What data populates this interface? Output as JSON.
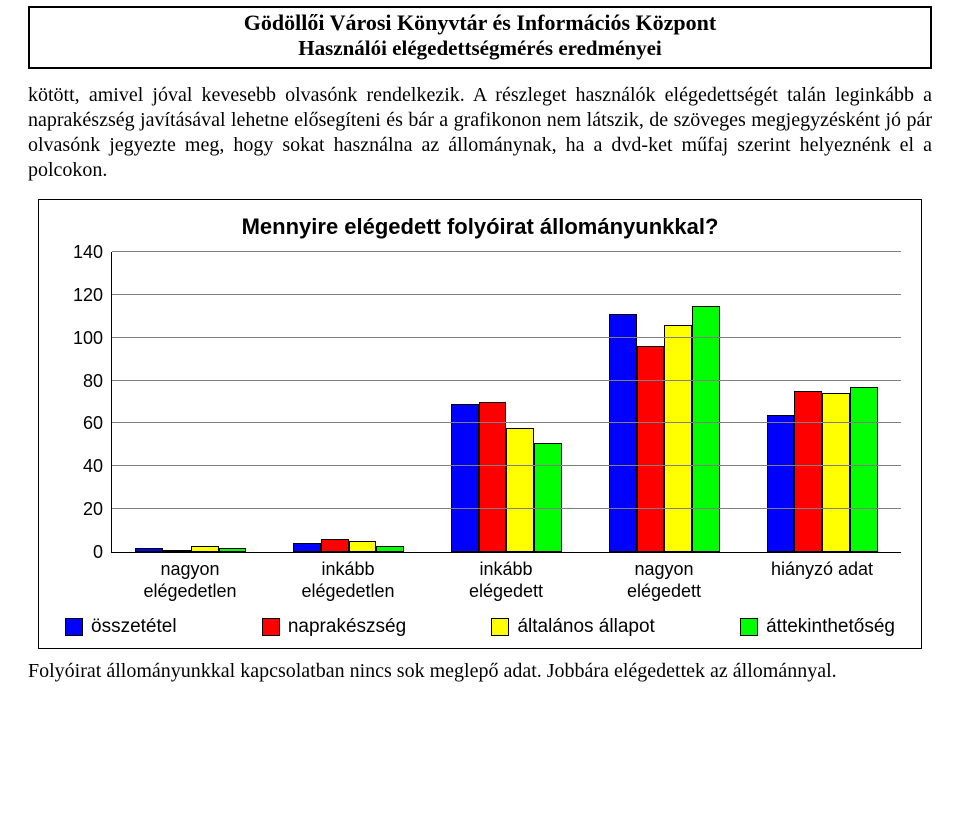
{
  "header": {
    "line1": "Gödöllői Városi Könyvtár és Információs Központ",
    "line2": "Használói elégedettségmérés eredményei"
  },
  "intro_paragraph": "kötött, amivel jóval kevesebb olvasónk rendelkezik. A részleget használók elégedettségét talán leginkább a naprakészség javításával lehetne elősegíteni és bár a grafikonon nem látszik, de szöveges megjegyzésként jó pár olvasónk jegyezte meg, hogy sokat használna az állománynak, ha a dvd-ket műfaj szerint helyeznénk el a polcokon.",
  "chart": {
    "type": "bar",
    "title": "Mennyire elégedett folyóirat állományunkkal?",
    "title_fontsize": 22,
    "background_color": "#ffffff",
    "grid_color": "#808080",
    "y": {
      "min": 0,
      "max": 140,
      "step": 20,
      "ticks": [
        140,
        120,
        100,
        80,
        60,
        40,
        20,
        0
      ],
      "label_fontsize": 18
    },
    "categories": [
      {
        "label_line1": "nagyon",
        "label_line2": "elégedetlen"
      },
      {
        "label_line1": "inkább",
        "label_line2": "elégedetlen"
      },
      {
        "label_line1": "inkább",
        "label_line2": "elégedett"
      },
      {
        "label_line1": "nagyon",
        "label_line2": "elégedett"
      },
      {
        "label_line1": "hiányzó adat",
        "label_line2": ""
      }
    ],
    "series": [
      {
        "name": "összetétel",
        "color": "#0000ff"
      },
      {
        "name": "naprakészség",
        "color": "#ff0000"
      },
      {
        "name": "általános állapot",
        "color": "#ffff00"
      },
      {
        "name": "áttekinthetőség",
        "color": "#00ff00"
      }
    ],
    "values": [
      [
        2,
        1,
        3,
        2
      ],
      [
        4,
        6,
        5,
        3
      ],
      [
        69,
        70,
        58,
        51
      ],
      [
        111,
        96,
        106,
        115
      ],
      [
        64,
        75,
        74,
        77
      ]
    ],
    "x_label_fontsize": 18,
    "legend_fontsize": 19,
    "bar_border_color": "#000000"
  },
  "footer_paragraph": "Folyóirat állományunkkal kapcsolatban nincs sok meglepő adat. Jobbára elégedettek az állománnyal."
}
